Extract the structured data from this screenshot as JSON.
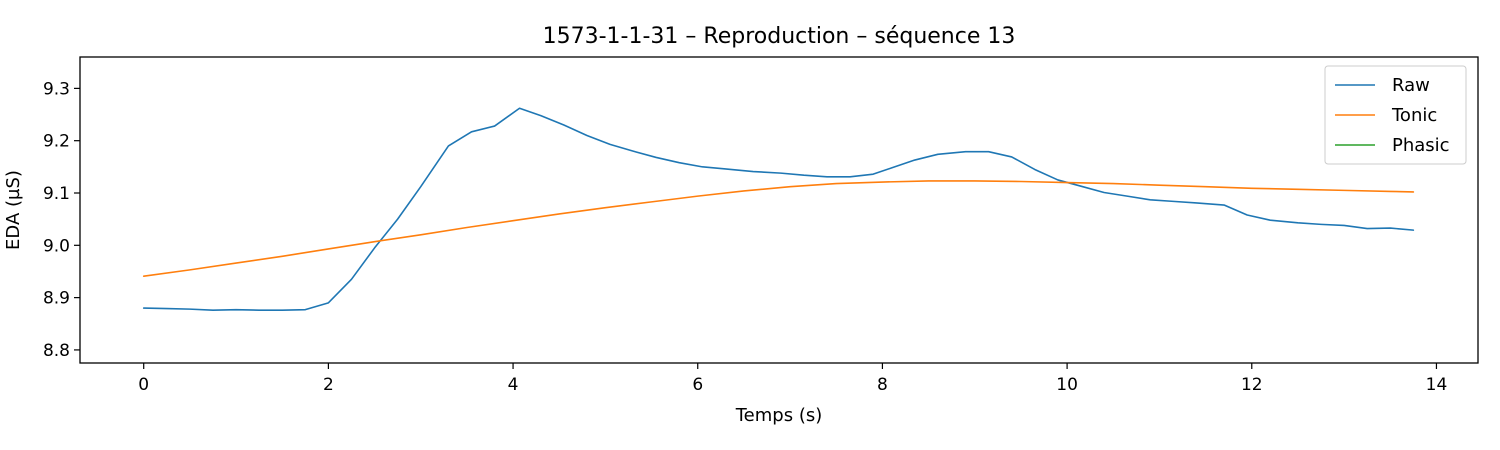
{
  "chart_data": {
    "type": "line",
    "title": "1573-1-1-31 – Reproduction – séquence 13",
    "xlabel": "Temps (s)",
    "ylabel": "EDA (µS)",
    "xlim": [
      -0.69,
      14.45
    ],
    "ylim": [
      8.775,
      9.36
    ],
    "xticks": [
      0,
      2,
      4,
      6,
      8,
      10,
      12,
      14
    ],
    "yticks": [
      8.8,
      8.9,
      9.0,
      9.1,
      9.2,
      9.3
    ],
    "ytick_labels": [
      "8.8",
      "8.9",
      "9.0",
      "9.1",
      "9.2",
      "9.3"
    ],
    "grid": false,
    "legend_position": "top-right",
    "series": [
      {
        "name": "Raw",
        "color": "#1f77b4",
        "x": [
          0,
          0.25,
          0.5,
          0.75,
          1.0,
          1.25,
          1.5,
          1.75,
          2.0,
          2.25,
          2.5,
          2.75,
          3.0,
          3.3,
          3.55,
          3.8,
          4.07,
          4.3,
          4.55,
          4.8,
          5.05,
          5.3,
          5.55,
          5.8,
          6.05,
          6.3,
          6.6,
          6.9,
          7.15,
          7.4,
          7.65,
          7.9,
          8.1,
          8.35,
          8.6,
          8.9,
          9.15,
          9.4,
          9.65,
          9.9,
          10.15,
          10.4,
          10.65,
          10.9,
          11.15,
          11.4,
          11.7,
          11.95,
          12.2,
          12.5,
          12.75,
          13.0,
          13.25,
          13.5,
          13.75
        ],
        "values": [
          8.88,
          8.879,
          8.878,
          8.876,
          8.877,
          8.876,
          8.876,
          8.877,
          8.89,
          8.935,
          8.995,
          9.05,
          9.112,
          9.19,
          9.217,
          9.228,
          9.262,
          9.248,
          9.23,
          9.21,
          9.193,
          9.18,
          9.168,
          9.158,
          9.15,
          9.146,
          9.141,
          9.138,
          9.134,
          9.131,
          9.131,
          9.136,
          9.148,
          9.163,
          9.174,
          9.179,
          9.179,
          9.169,
          9.145,
          9.125,
          9.113,
          9.101,
          9.094,
          9.087,
          9.084,
          9.081,
          9.077,
          9.058,
          9.048,
          9.043,
          9.04,
          9.038,
          9.032,
          9.033,
          9.029
        ]
      },
      {
        "name": "Tonic",
        "color": "#ff7f0e",
        "x": [
          0,
          0.5,
          1.0,
          1.5,
          2.0,
          2.5,
          3.0,
          3.5,
          4.0,
          4.5,
          5.0,
          5.5,
          6.0,
          6.5,
          7.0,
          7.5,
          8.0,
          8.5,
          9.0,
          9.5,
          10.0,
          10.5,
          11.0,
          11.5,
          12.0,
          12.5,
          13.0,
          13.5,
          13.75
        ],
        "values": [
          8.941,
          8.953,
          8.966,
          8.979,
          8.993,
          9.007,
          9.02,
          9.034,
          9.047,
          9.06,
          9.072,
          9.083,
          9.094,
          9.104,
          9.112,
          9.118,
          9.121,
          9.123,
          9.123,
          9.122,
          9.12,
          9.118,
          9.115,
          9.112,
          9.109,
          9.107,
          9.105,
          9.103,
          9.102
        ]
      },
      {
        "name": "Phasic",
        "color": "#2ca02c",
        "x": [],
        "values": []
      }
    ]
  }
}
